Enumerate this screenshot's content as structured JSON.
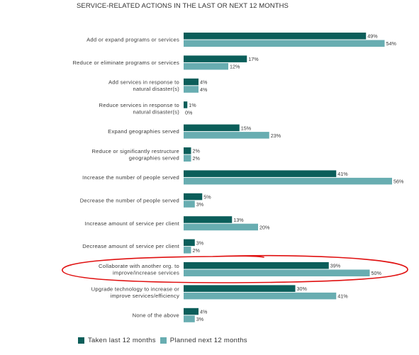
{
  "chart_data": {
    "type": "bar",
    "orientation": "horizontal",
    "title": "SERVICE-RELATED ACTIONS IN THE LAST OR NEXT 12 MONTHS",
    "categories": [
      [
        "Add or expand programs or services"
      ],
      [
        "Reduce or eliminate programs or services"
      ],
      [
        "Add services in response to",
        "natural disaster(s)"
      ],
      [
        "Reduce services in response to",
        "natural disaster(s)"
      ],
      [
        "Expand geographies served"
      ],
      [
        "Reduce or significantly restructure",
        "geographies served"
      ],
      [
        "Increase the number of people served"
      ],
      [
        "Decrease the number of people served"
      ],
      [
        "Increase amount of service per client"
      ],
      [
        "Decrease amount of service per client"
      ],
      [
        "Collaborate with another org. to",
        "improve/increase services"
      ],
      [
        "Upgrade technology to increase or",
        "improve services/efficiency"
      ],
      [
        "None of the above"
      ]
    ],
    "series": [
      {
        "name": "Taken last 12 months",
        "color": "#0b5e5a",
        "values": [
          49,
          17,
          4,
          1,
          15,
          2,
          41,
          5,
          13,
          3,
          39,
          30,
          4
        ]
      },
      {
        "name": "Planned next 12 months",
        "color": "#68adb1",
        "values": [
          54,
          12,
          4,
          0,
          23,
          2,
          56,
          3,
          20,
          2,
          50,
          41,
          3
        ]
      }
    ],
    "value_suffix": "%",
    "xlim": [
      0,
      60
    ],
    "grid": false,
    "legend_position": "bottom-left",
    "annotation": {
      "type": "hand-drawn ellipse",
      "color": "#e01010",
      "category_index": 10
    }
  }
}
